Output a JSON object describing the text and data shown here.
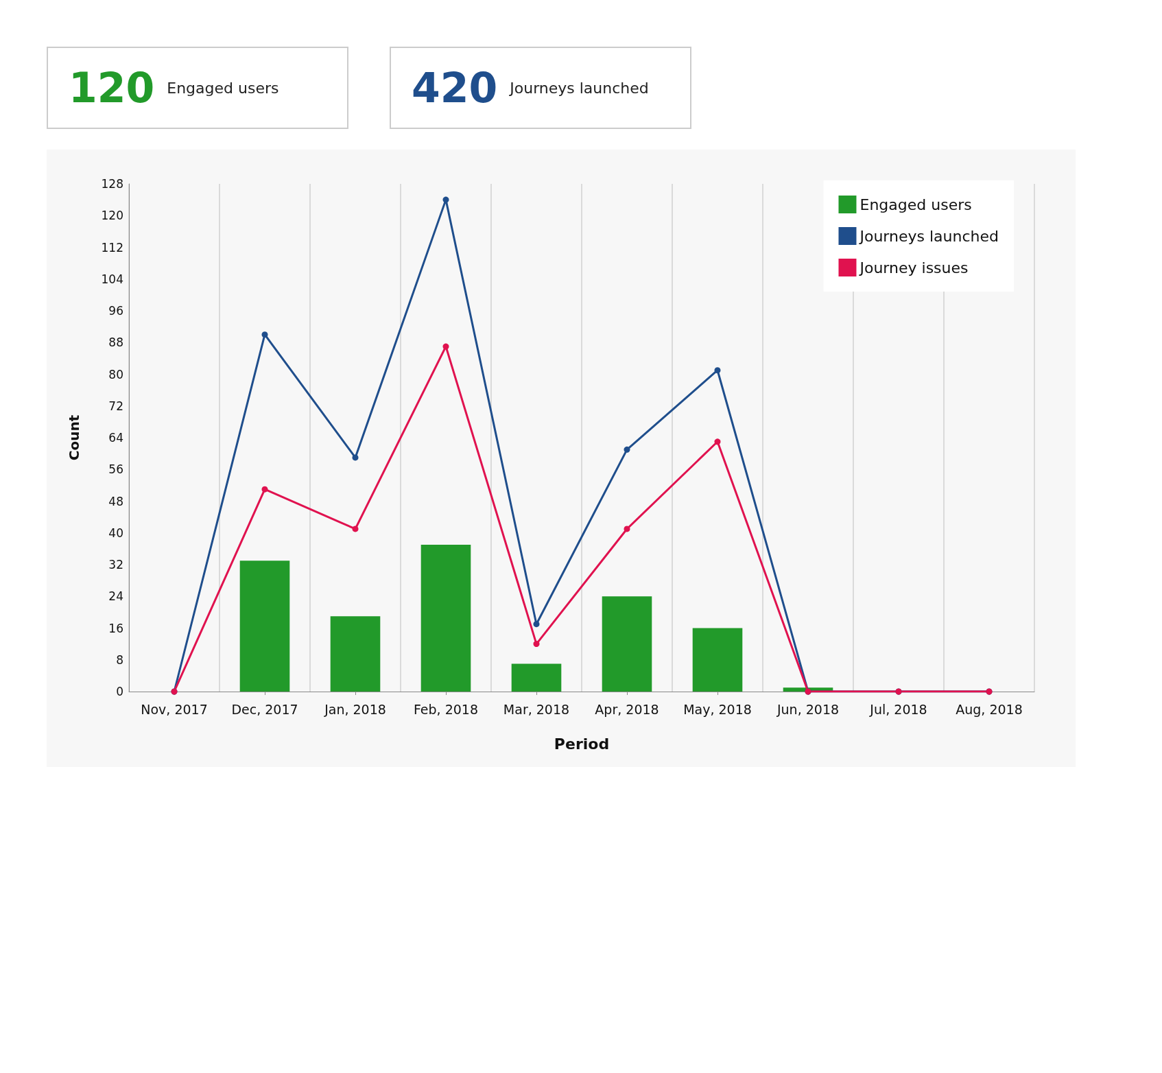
{
  "chart_data": [
    {
      "type": "other",
      "title": "120",
      "subtitle": "Engaged users"
    },
    {
      "type": "other",
      "title": "420",
      "subtitle": "Journeys launched"
    },
    {
      "type": "bar",
      "xlabel": "Period",
      "ylabel": "Count",
      "categories": [
        "Nov, 2017",
        "Dec, 2017",
        "Jan, 2018",
        "Feb, 2018",
        "Mar, 2018",
        "Apr, 2018",
        "May, 2018",
        "Jun, 2018",
        "Jul, 2018",
        "Aug, 2018"
      ],
      "series": [
        {
          "name": "Engaged users",
          "type": "bar",
          "color": "#229a2a",
          "values": [
            0,
            33,
            19,
            37,
            7,
            24,
            16,
            1,
            0,
            0
          ]
        },
        {
          "name": "Journeys launched",
          "type": "line",
          "color": "#1f4e8c",
          "values": [
            0,
            90,
            59,
            124,
            17,
            61,
            81,
            0,
            0,
            0
          ]
        },
        {
          "name": "Journey issues",
          "type": "line",
          "color": "#e0124f",
          "values": [
            0,
            51,
            41,
            87,
            12,
            41,
            63,
            0,
            0,
            0
          ]
        }
      ],
      "ylim": [
        0,
        128
      ],
      "yticks": [
        0,
        8,
        16,
        24,
        32,
        40,
        48,
        56,
        64,
        72,
        80,
        88,
        96,
        104,
        112,
        120,
        128
      ],
      "grid": "x",
      "legend": "top right",
      "marker": "circle",
      "line_style": "solid"
    }
  ]
}
